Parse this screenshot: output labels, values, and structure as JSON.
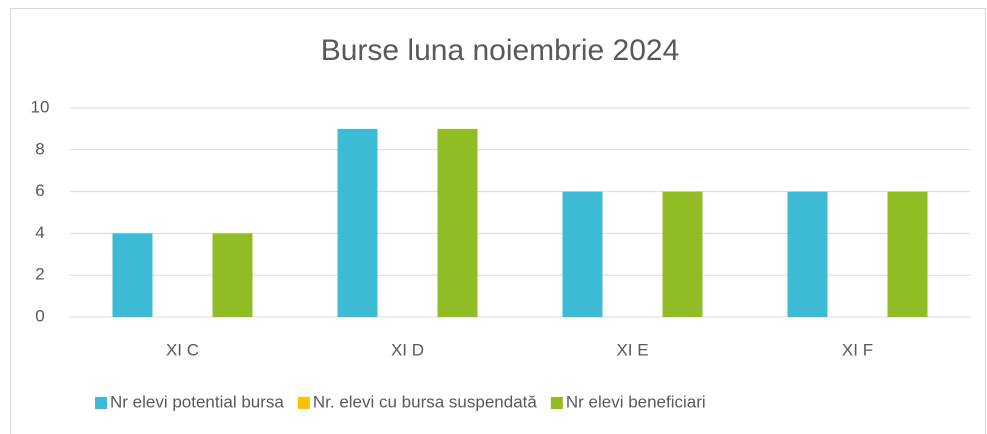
{
  "chart_data": {
    "type": "bar",
    "title": "Burse luna noiembrie 2024",
    "categories": [
      "XI C",
      "XI D",
      "XI E",
      "XI F"
    ],
    "series": [
      {
        "name": "Nr elevi potential bursa",
        "color": "#3dbbd4",
        "values": [
          4,
          9,
          6,
          6
        ]
      },
      {
        "name": "Nr. elevi cu bursa suspendată",
        "color": "#ffc000",
        "values": [
          0,
          0,
          0,
          0
        ]
      },
      {
        "name": "Nr elevi beneficiari",
        "color": "#92bc24",
        "values": [
          4,
          9,
          6,
          6
        ]
      }
    ],
    "ylim": [
      0,
      10
    ],
    "yticks": [
      0,
      2,
      4,
      6,
      8,
      10
    ],
    "grid": true,
    "legend": "bottom"
  }
}
